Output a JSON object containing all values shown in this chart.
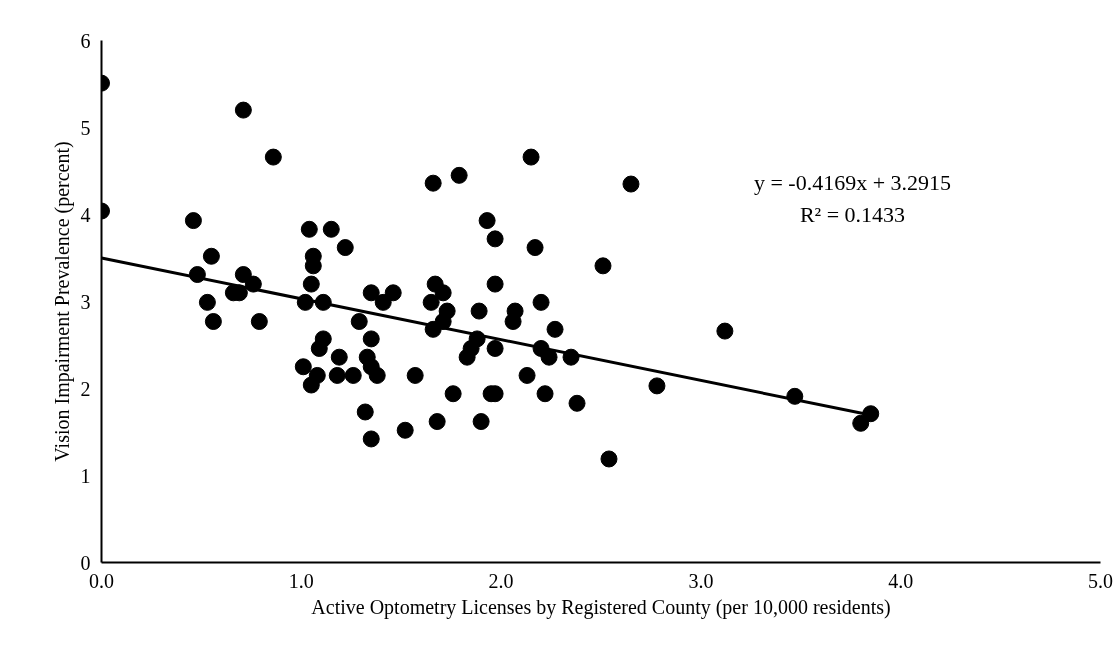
{
  "chart_data": {
    "type": "scatter",
    "xlabel": "Active Optometry Licenses by Registered County (per 10,000 residents)",
    "ylabel": "Vision Impairment Prevalence (percent)",
    "xlim": [
      0,
      5
    ],
    "ylim": [
      0,
      6
    ],
    "xticks": [
      {
        "value": 0,
        "label": "0.0"
      },
      {
        "value": 1,
        "label": "1.0"
      },
      {
        "value": 2,
        "label": "2.0"
      },
      {
        "value": 3,
        "label": "3.0"
      },
      {
        "value": 4,
        "label": "4.0"
      },
      {
        "value": 5,
        "label": "5.0"
      }
    ],
    "yticks": [
      0,
      1,
      2,
      3,
      4,
      5,
      6
    ],
    "grid": false,
    "annotations": [
      "y = -0.4169x + 3.2915",
      "R² = 0.1433"
    ],
    "series": [
      {
        "marker": "circle",
        "color": "#000000",
        "x": [
          0.0,
          0.0,
          0.71,
          0.86,
          1.66,
          1.79,
          2.15,
          0.46,
          1.04,
          1.15,
          1.22,
          1.93,
          1.97,
          2.17,
          2.51,
          0.55,
          1.06,
          1.06,
          0.48,
          0.71,
          0.76,
          1.05,
          1.67,
          1.71,
          1.97,
          0.66,
          0.69,
          1.35,
          1.46,
          1.41,
          0.53,
          1.02,
          1.11,
          1.65,
          2.2,
          0.56,
          0.79,
          1.29,
          1.73,
          1.71,
          1.89,
          2.07,
          2.06,
          1.66,
          2.27,
          1.11,
          1.09,
          1.35,
          1.88,
          1.85,
          1.83,
          1.97,
          2.2,
          2.24,
          2.35,
          1.19,
          1.33,
          1.01,
          1.35,
          1.08,
          1.05,
          1.18,
          1.26,
          1.38,
          1.57,
          2.13,
          1.76,
          1.95,
          1.97,
          2.22,
          2.38,
          1.32,
          1.68,
          1.9,
          1.52,
          1.35,
          2.54,
          2.65,
          3.12,
          2.78,
          3.47,
          3.85,
          3.8
        ],
        "values": [
          5.51,
          4.04,
          5.2,
          4.66,
          4.36,
          4.45,
          4.66,
          3.93,
          3.83,
          3.83,
          3.62,
          3.93,
          3.72,
          3.62,
          3.41,
          3.52,
          3.52,
          3.41,
          3.31,
          3.31,
          3.2,
          3.2,
          3.2,
          3.1,
          3.2,
          3.1,
          3.1,
          3.1,
          3.1,
          2.99,
          2.99,
          2.99,
          2.99,
          2.99,
          2.99,
          2.77,
          2.77,
          2.77,
          2.89,
          2.77,
          2.89,
          2.89,
          2.77,
          2.68,
          2.68,
          2.57,
          2.46,
          2.57,
          2.57,
          2.46,
          2.36,
          2.46,
          2.46,
          2.36,
          2.36,
          2.36,
          2.36,
          2.25,
          2.25,
          2.15,
          2.04,
          2.15,
          2.15,
          2.15,
          2.15,
          2.15,
          1.94,
          1.94,
          1.94,
          1.94,
          1.83,
          1.73,
          1.62,
          1.62,
          1.52,
          1.42,
          1.19,
          4.35,
          2.66,
          2.03,
          1.91,
          1.71,
          1.6
        ]
      },
      {
        "type": "line",
        "marker": "none",
        "color": "#000000",
        "line_style": "solid",
        "x": [
          0.0,
          3.88
        ],
        "values": [
          3.5,
          1.68
        ]
      }
    ]
  }
}
